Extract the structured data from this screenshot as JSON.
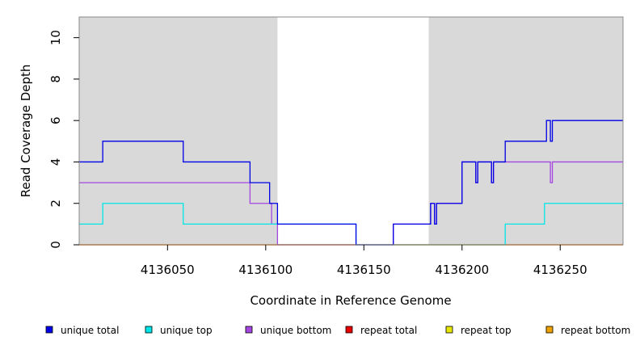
{
  "chart_data": {
    "type": "line",
    "title": "",
    "xlabel": "Coordinate in Reference Genome",
    "ylabel": "Read Coverage Depth",
    "xlim": [
      4136005,
      4136282
    ],
    "ylim": [
      0,
      11
    ],
    "x_ticks": [
      4136050,
      4136100,
      4136150,
      4136200,
      4136250
    ],
    "x_tick_labels": [
      "4136050",
      "4136100",
      "4136150",
      "4136200",
      "4136250"
    ],
    "y_ticks": [
      0,
      2,
      4,
      6,
      8,
      10
    ],
    "y_tick_labels": [
      "0",
      "2",
      "4",
      "6",
      "8",
      "10"
    ],
    "grid": false,
    "shaded_regions": [
      {
        "from": 4136005,
        "to": 4136106,
        "color": "#d9d9d9"
      },
      {
        "from": 4136183,
        "to": 4136282,
        "color": "#d9d9d9"
      }
    ],
    "series": [
      {
        "name": "unique total",
        "color": "#0000e6",
        "points": [
          [
            4136005,
            4
          ],
          [
            4136017,
            5
          ],
          [
            4136058,
            4
          ],
          [
            4136092,
            3
          ],
          [
            4136102,
            2
          ],
          [
            4136106,
            1
          ],
          [
            4136146,
            0
          ],
          [
            4136165,
            1
          ],
          [
            4136184,
            2
          ],
          [
            4136186,
            1
          ],
          [
            4136187,
            2
          ],
          [
            4136200,
            4
          ],
          [
            4136207,
            3
          ],
          [
            4136208,
            4
          ],
          [
            4136215,
            3
          ],
          [
            4136216,
            4
          ],
          [
            4136222,
            5
          ],
          [
            4136243,
            6
          ],
          [
            4136245,
            5
          ],
          [
            4136246,
            6
          ],
          [
            4136282,
            6
          ]
        ]
      },
      {
        "name": "unique top",
        "color": "#00e6e6",
        "points": [
          [
            4136005,
            1
          ],
          [
            4136017,
            2
          ],
          [
            4136058,
            1
          ],
          [
            4136103,
            1
          ],
          [
            4136106,
            1
          ],
          [
            4136146,
            0
          ],
          [
            4136222,
            1
          ],
          [
            4136242,
            2
          ],
          [
            4136282,
            2
          ]
        ]
      },
      {
        "name": "unique bottom",
        "color": "#a347e0",
        "points": [
          [
            4136005,
            3
          ],
          [
            4136092,
            2
          ],
          [
            4136103,
            1
          ],
          [
            4136106,
            0
          ],
          [
            4136165,
            1
          ],
          [
            4136184,
            2
          ],
          [
            4136186,
            1
          ],
          [
            4136187,
            2
          ],
          [
            4136200,
            4
          ],
          [
            4136207,
            3
          ],
          [
            4136208,
            4
          ],
          [
            4136215,
            3
          ],
          [
            4136216,
            4
          ],
          [
            4136245,
            3
          ],
          [
            4136246,
            4
          ],
          [
            4136282,
            4
          ]
        ]
      },
      {
        "name": "repeat total",
        "color": "#e60000",
        "points": [
          [
            4136005,
            0
          ],
          [
            4136282,
            0
          ]
        ]
      },
      {
        "name": "repeat top",
        "color": "#e6e600",
        "points": [
          [
            4136005,
            0
          ],
          [
            4136282,
            0
          ]
        ]
      },
      {
        "name": "repeat bottom",
        "color": "#f0a000",
        "points": [
          [
            4136005,
            0
          ],
          [
            4136282,
            0
          ]
        ]
      }
    ],
    "legend": {
      "placement": "bottom",
      "entries": [
        {
          "label": "unique total",
          "color": "#0000e6"
        },
        {
          "label": "unique top",
          "color": "#00e6e6"
        },
        {
          "label": "unique bottom",
          "color": "#a347e0"
        },
        {
          "label": "repeat total",
          "color": "#e60000"
        },
        {
          "label": "repeat top",
          "color": "#e6e600"
        },
        {
          "label": "repeat bottom",
          "color": "#f0a000"
        }
      ]
    }
  }
}
